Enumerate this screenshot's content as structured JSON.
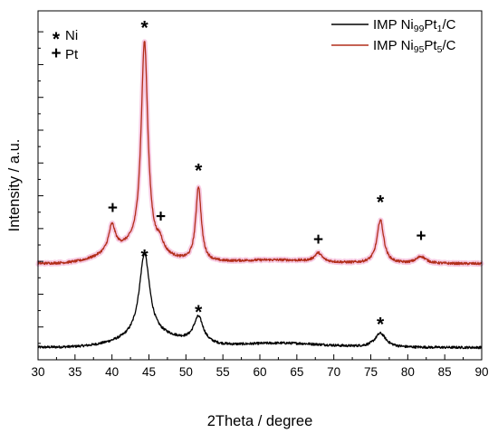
{
  "chart_data": {
    "type": "line",
    "title": "",
    "xlabel": "2Theta / degree",
    "ylabel": "Intensity / a.u.",
    "xlim": [
      30,
      90
    ],
    "xticks": [
      30,
      35,
      40,
      45,
      50,
      55,
      60,
      65,
      70,
      75,
      80,
      85,
      90
    ],
    "ylim": [
      0,
      100
    ],
    "y_tick_labels_shown": false,
    "grid": false,
    "legend_position": "top-right",
    "series": [
      {
        "name": "IMP Ni99Pt1/C",
        "legend_parts": [
          {
            "t": "IMP Ni",
            "s": "normal"
          },
          {
            "t": "99",
            "s": "sub"
          },
          {
            "t": "Pt",
            "s": "normal"
          },
          {
            "t": "1",
            "s": "sub"
          },
          {
            "t": "/C",
            "s": "normal"
          }
        ],
        "color": "#000000",
        "baseline": 3.5,
        "peaks": [
          {
            "x": 44.4,
            "h": 24,
            "w": 0.85
          },
          {
            "x": 51.7,
            "h": 7.5,
            "w": 0.8
          },
          {
            "x": 76.3,
            "h": 4,
            "w": 0.9
          }
        ],
        "humps": [
          {
            "x": 45.5,
            "h": 3.0,
            "w": 6.0
          },
          {
            "x": 63.0,
            "h": 1.2,
            "w": 8.0
          }
        ]
      },
      {
        "name": "IMP Ni95Pt5/C",
        "legend_parts": [
          {
            "t": "IMP Ni",
            "s": "normal"
          },
          {
            "t": "95",
            "s": "sub"
          },
          {
            "t": "Pt",
            "s": "normal"
          },
          {
            "t": "5",
            "s": "sub"
          },
          {
            "t": "/C",
            "s": "normal"
          }
        ],
        "color": "#b22e1a",
        "halo_color": "#f4b8d8",
        "baseline": 27.5,
        "peaks": [
          {
            "x": 40.0,
            "h": 7.5,
            "w": 0.55
          },
          {
            "x": 44.4,
            "h": 60,
            "w": 0.55
          },
          {
            "x": 46.5,
            "h": 2.8,
            "w": 0.5
          },
          {
            "x": 51.7,
            "h": 21.5,
            "w": 0.45
          },
          {
            "x": 67.9,
            "h": 2.5,
            "w": 0.6
          },
          {
            "x": 76.3,
            "h": 12.5,
            "w": 0.55
          },
          {
            "x": 81.8,
            "h": 2.0,
            "w": 0.8
          }
        ],
        "humps": [
          {
            "x": 42.5,
            "h": 4.0,
            "w": 5.0
          },
          {
            "x": 62.0,
            "h": 1.0,
            "w": 8.0
          }
        ]
      }
    ],
    "phase_legend": [
      {
        "symbol": "*",
        "label": "Ni"
      },
      {
        "symbol": "+",
        "label": "Pt"
      }
    ],
    "annotations": [
      {
        "symbol": "*",
        "x": 44.4,
        "y": 96
      },
      {
        "symbol": "+",
        "x": 40.1,
        "y": 43.5
      },
      {
        "symbol": "+",
        "x": 46.6,
        "y": 41
      },
      {
        "symbol": "*",
        "x": 51.7,
        "y": 55
      },
      {
        "symbol": "+",
        "x": 67.9,
        "y": 34.5
      },
      {
        "symbol": "*",
        "x": 76.3,
        "y": 46
      },
      {
        "symbol": "+",
        "x": 81.8,
        "y": 35.5
      },
      {
        "symbol": "*",
        "x": 44.4,
        "y": 30.5
      },
      {
        "symbol": "*",
        "x": 51.7,
        "y": 14.5
      },
      {
        "symbol": "*",
        "x": 76.3,
        "y": 11
      }
    ]
  }
}
